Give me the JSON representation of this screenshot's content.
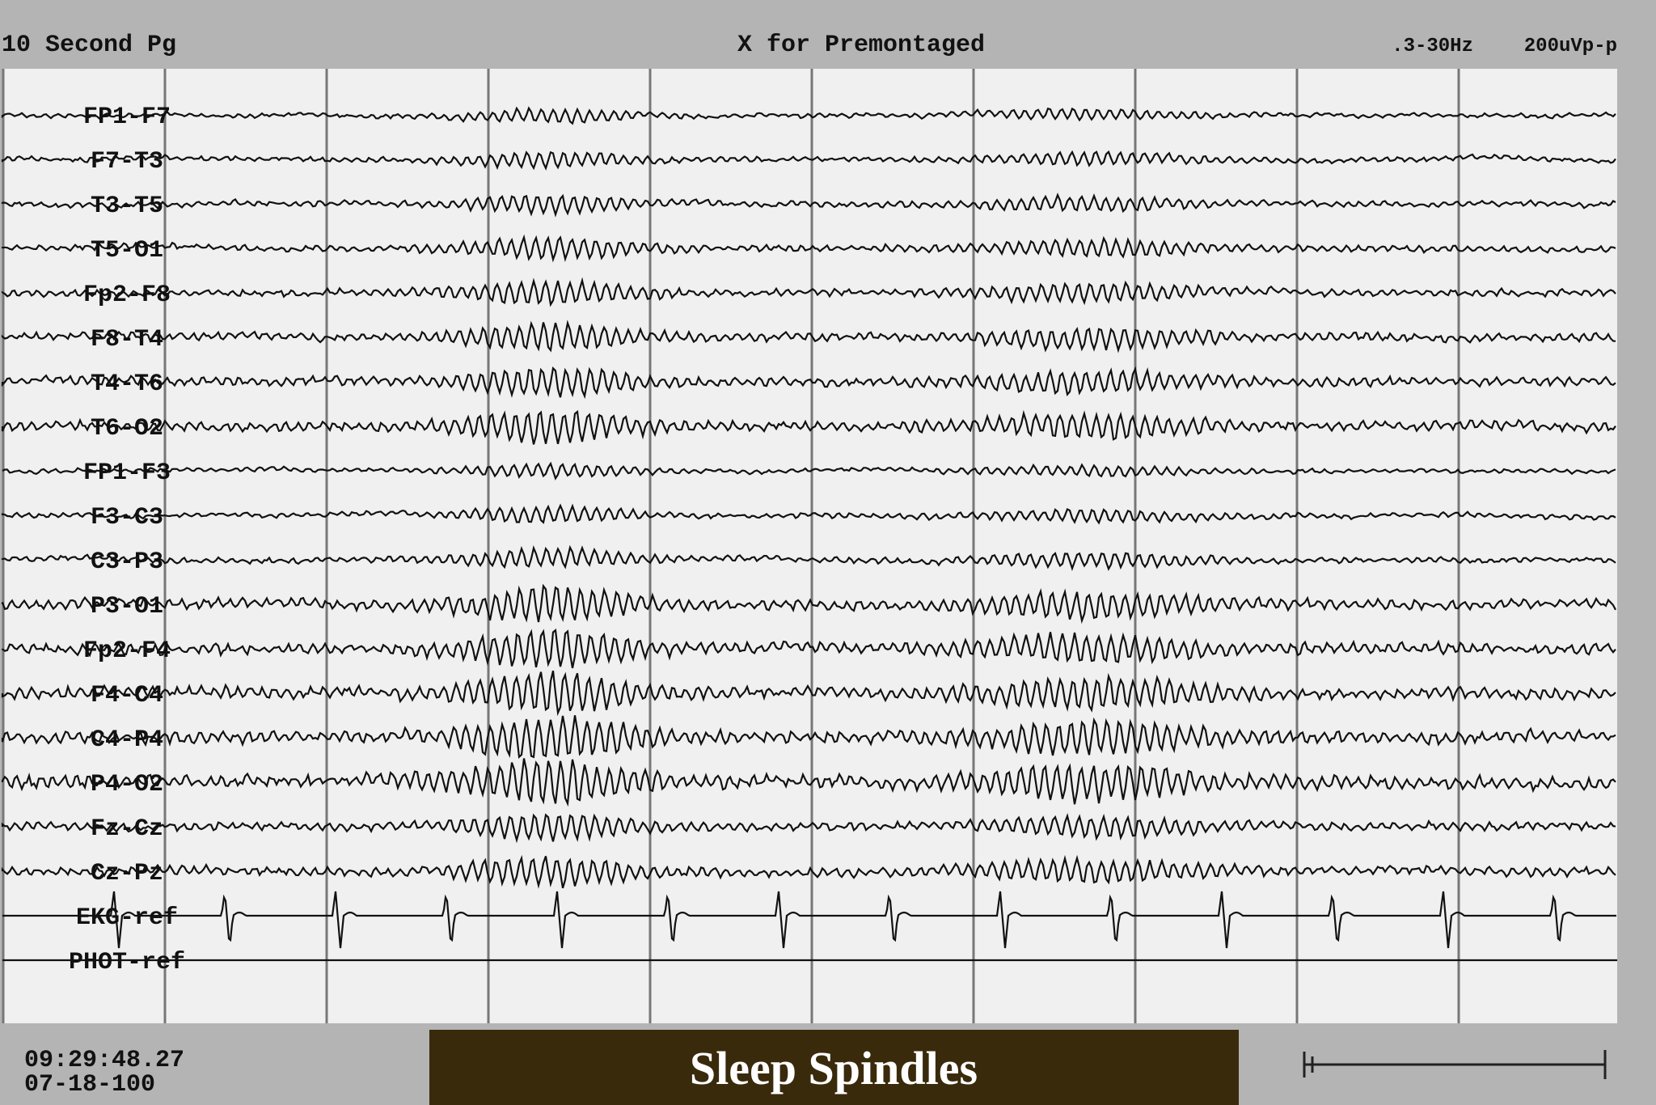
{
  "header": {
    "page": "10 Second Pg",
    "hint": "X for Premontaged",
    "filter": ".3-30Hz",
    "gain": "200uVp-p"
  },
  "channels": [
    "FP1-F7",
    "F7-T3",
    "T3-T5",
    "T5-O1",
    "Fp2-F8",
    "F8-T4",
    "T4-T6",
    "T6-O2",
    "FP1-F3",
    "F3-C3",
    "C3-P3",
    "P3-O1",
    "Fp2-F4",
    "F4-C4",
    "C4-P4",
    "P4-O2",
    "Fz-Cz",
    "Cz-Pz",
    "EKG-ref",
    "PHOT-ref"
  ],
  "footer": {
    "time": "09:29:48.27",
    "date": "07-18-100",
    "banner": "Sleep Spindles"
  }
}
